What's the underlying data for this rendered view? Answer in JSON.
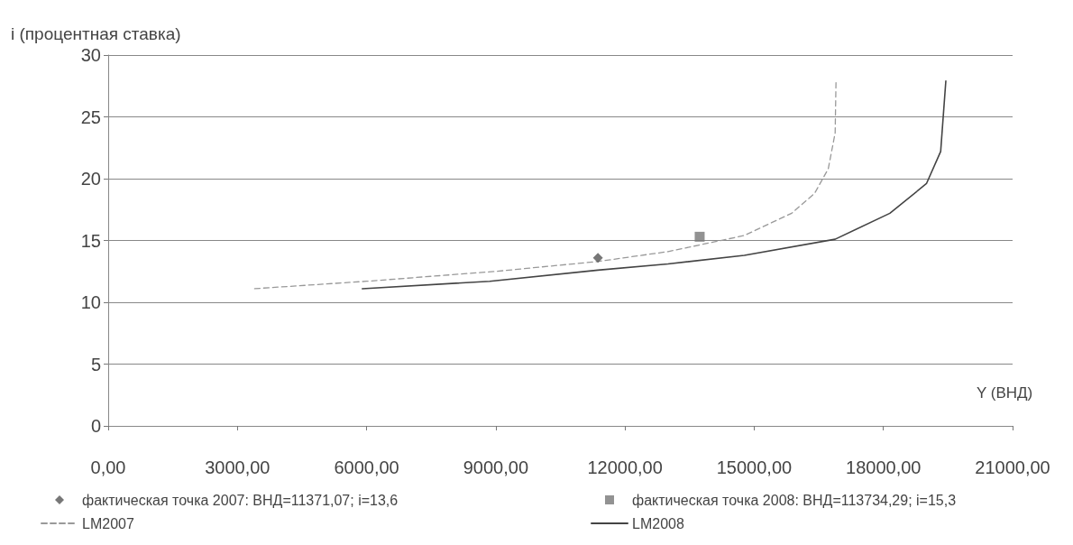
{
  "chart_data": {
    "type": "line",
    "xlabel": "Y (ВНД)",
    "ylabel": "i (процентная ставка)",
    "xlim": [
      0,
      21000
    ],
    "ylim": [
      0,
      30
    ],
    "xticks": [
      {
        "value": 0,
        "label": "0,00"
      },
      {
        "value": 3000,
        "label": "3000,00"
      },
      {
        "value": 6000,
        "label": "6000,00"
      },
      {
        "value": 9000,
        "label": "9000,00"
      },
      {
        "value": 12000,
        "label": "12000,00"
      },
      {
        "value": 15000,
        "label": "15000,00"
      },
      {
        "value": 18000,
        "label": "18000,00"
      },
      {
        "value": 21000,
        "label": "21000,00"
      }
    ],
    "yticks": [
      0,
      5,
      10,
      15,
      20,
      25,
      30
    ],
    "grid": "y",
    "legend": "bottom",
    "series": [
      {
        "name": "фактическая точка 2007: ВНД=11371,07; i=13,6",
        "type": "scatter",
        "marker": "diamond",
        "color": "#555555",
        "x": [
          11371.07
        ],
        "values": [
          13.6
        ]
      },
      {
        "name": "фактическая точка 2008: ВНД=113734,29; i=15,3",
        "type": "scatter",
        "marker": "square",
        "color": "#777777",
        "x": [
          13734
        ],
        "values": [
          15.3
        ]
      },
      {
        "name": "LM2007",
        "line_style": "dashed",
        "color": "#999999",
        "x": [
          3400,
          6000,
          9000,
          11371,
          13000,
          14770,
          15870,
          16400,
          16720,
          16880,
          16900
        ],
        "values": [
          11.1,
          11.7,
          12.5,
          13.3,
          14.1,
          15.4,
          17.2,
          18.8,
          20.8,
          23.7,
          27.9
        ]
      },
      {
        "name": "LM2008",
        "line_style": "solid",
        "color": "#444444",
        "x": [
          5900,
          8860,
          11371,
          13000,
          14770,
          16880,
          18150,
          19000,
          19330,
          19450
        ],
        "values": [
          11.1,
          11.7,
          12.6,
          13.1,
          13.8,
          15.1,
          17.2,
          19.6,
          22.2,
          27.9
        ]
      }
    ]
  }
}
